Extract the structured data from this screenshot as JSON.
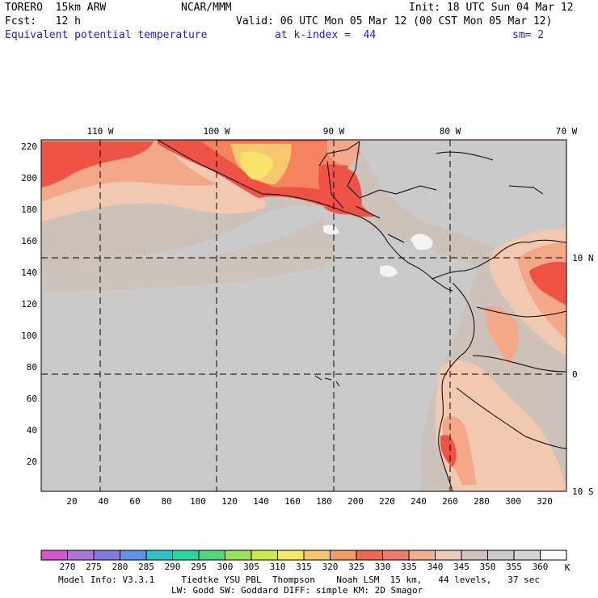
{
  "header": {
    "model": "TORERO  15km ARW",
    "center": "NCAR/MMM",
    "init": "Init: 18 UTC Sun 04 Mar 12",
    "fcst": "Fcst:   12 h",
    "valid": "Valid: 06 UTC Mon 05 Mar 12 (00 CST Mon 05 Mar 12)",
    "field": "Equivalent potential temperature",
    "level": "at k-index =  44",
    "smooth": "sm= 2"
  },
  "axes": {
    "top_lon": [
      "110 W",
      "100 W",
      "90 W",
      "80 W",
      "70 W"
    ],
    "right_lat": [
      "10 N",
      "0",
      "10 S"
    ],
    "left_y": [
      "220",
      "200",
      "180",
      "160",
      "140",
      "120",
      "100",
      "80",
      "60",
      "40",
      "20"
    ],
    "bottom_x": [
      "20",
      "40",
      "60",
      "80",
      "100",
      "120",
      "140",
      "160",
      "180",
      "200",
      "220",
      "240",
      "260",
      "280",
      "300",
      "320"
    ]
  },
  "colorbar": {
    "labels": [
      "270",
      "275",
      "280",
      "285",
      "290",
      "295",
      "300",
      "305",
      "310",
      "315",
      "320",
      "325",
      "330",
      "335",
      "340",
      "345",
      "350",
      "355",
      "360"
    ],
    "unit": "K",
    "colors": [
      "#d257d0",
      "#a877d8",
      "#8478e6",
      "#5f91e8",
      "#2dc2c8",
      "#24d8a2",
      "#4fd97c",
      "#97e35a",
      "#ccea4b",
      "#f4ea62",
      "#f7c56b",
      "#f49a63",
      "#f06451",
      "#f07a6a",
      "#f3b090",
      "#f0cab2",
      "#cdc3ba",
      "#cacaca",
      "#d4d4d4",
      "#ffffff"
    ]
  },
  "footer": {
    "line1": "Model Info: V3.3.1     Tiedtke YSU PBL  Thompson    Noah LSM  15 km,   44 levels,   37 sec",
    "line2": "LW: Godd SW: Goddard DIFF: simple KM: 2D Smagor"
  },
  "map_colors": {
    "background": "#ccc2b9",
    "ocean_gray": "#cacaca",
    "light_peach": "#f1c8b0",
    "salmon": "#f3a889",
    "orange": "#f4835f",
    "red": "#ee5346",
    "yellow": "#f8e46a",
    "light_yellow": "#f7c86c",
    "white_patch": "#f4f4f4"
  }
}
